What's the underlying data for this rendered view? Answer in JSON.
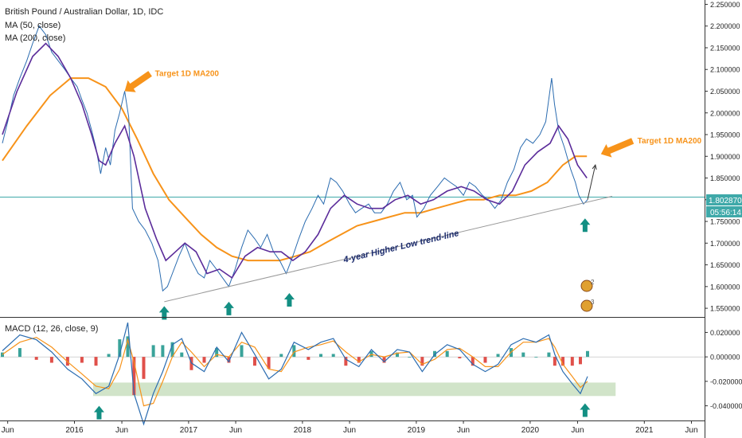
{
  "chart_data": {
    "type": "line",
    "title": "British Pound / Australian Dollar, 1D, IDC",
    "indicators": [
      "MA (50, close)",
      "MA (200, close)"
    ],
    "x_ticks": [
      "Jun",
      "2016",
      "Jun",
      "2017",
      "Jun",
      "2018",
      "Jun",
      "2019",
      "Jun",
      "2020",
      "Jun",
      "2021",
      "Jun"
    ],
    "price_axis": {
      "ylim": [
        1.53,
        2.26
      ],
      "ticks": [
        "2.250000",
        "2.200000",
        "2.150000",
        "2.100000",
        "2.050000",
        "2.000000",
        "1.950000",
        "1.900000",
        "1.850000",
        "1.800000",
        "1.750000",
        "1.700000",
        "1.650000",
        "1.600000",
        "1.550000"
      ]
    },
    "current_price": "1.802870",
    "countdown": "05:56:14",
    "series": [
      {
        "name": "GBPAUD",
        "color": "#2b6cb0",
        "x": [
          "2015-05-15",
          "2015-06-01",
          "2015-06-20",
          "2015-07-10",
          "2015-08-01",
          "2015-08-20",
          "2015-09-10",
          "2015-10-01",
          "2015-10-20",
          "2015-11-10",
          "2015-12-01",
          "2015-12-20",
          "2016-01-10",
          "2016-01-25",
          "2016-02-10",
          "2016-02-25",
          "2016-03-10",
          "2016-03-25",
          "2016-04-10",
          "2016-04-25",
          "2016-05-10",
          "2016-05-25",
          "2016-06-10",
          "2016-06-23",
          "2016-07-05",
          "2016-07-25",
          "2016-08-15",
          "2016-09-05",
          "2016-09-25",
          "2016-10-10",
          "2016-10-25",
          "2016-11-10",
          "2016-12-01",
          "2016-12-20",
          "2017-01-10",
          "2017-02-01",
          "2017-02-20",
          "2017-03-10",
          "2017-03-31",
          "2017-04-20",
          "2017-05-10",
          "2017-05-30",
          "2017-06-20",
          "2017-07-10",
          "2017-08-01",
          "2017-08-20",
          "2017-09-10",
          "2017-09-30",
          "2017-10-20",
          "2017-11-10",
          "2017-12-01",
          "2017-12-20",
          "2018-01-10",
          "2018-02-01",
          "2018-02-20",
          "2018-03-10",
          "2018-04-01",
          "2018-04-20",
          "2018-05-10",
          "2018-06-01",
          "2018-06-20",
          "2018-07-10",
          "2018-08-01",
          "2018-08-20",
          "2018-09-10",
          "2018-09-30",
          "2018-10-20",
          "2018-11-10",
          "2018-12-01",
          "2018-12-20",
          "2019-01-03",
          "2019-01-25",
          "2019-02-15",
          "2019-03-10",
          "2019-04-01",
          "2019-04-20",
          "2019-05-10",
          "2019-06-01",
          "2019-06-20",
          "2019-07-10",
          "2019-08-01",
          "2019-08-20",
          "2019-09-10",
          "2019-09-30",
          "2019-10-20",
          "2019-11-10",
          "2019-12-01",
          "2019-12-20",
          "2020-01-10",
          "2020-02-01",
          "2020-02-20",
          "2020-03-10",
          "2020-03-19",
          "2020-04-01",
          "2020-04-20",
          "2020-05-10",
          "2020-05-25",
          "2020-06-05",
          "2020-06-20",
          "2020-07-03"
        ],
        "values": [
          1.93,
          1.98,
          2.04,
          2.08,
          2.12,
          2.16,
          2.2,
          2.18,
          2.14,
          2.12,
          2.1,
          2.08,
          2.06,
          2.03,
          2.0,
          1.96,
          1.92,
          1.86,
          1.92,
          1.88,
          1.96,
          2.0,
          2.05,
          1.99,
          1.78,
          1.75,
          1.73,
          1.7,
          1.66,
          1.59,
          1.6,
          1.63,
          1.67,
          1.7,
          1.66,
          1.63,
          1.62,
          1.66,
          1.64,
          1.62,
          1.6,
          1.64,
          1.69,
          1.73,
          1.71,
          1.69,
          1.72,
          1.68,
          1.66,
          1.63,
          1.67,
          1.71,
          1.75,
          1.78,
          1.81,
          1.79,
          1.85,
          1.84,
          1.82,
          1.79,
          1.77,
          1.78,
          1.79,
          1.77,
          1.77,
          1.79,
          1.82,
          1.84,
          1.8,
          1.81,
          1.76,
          1.78,
          1.81,
          1.83,
          1.85,
          1.84,
          1.83,
          1.81,
          1.84,
          1.83,
          1.81,
          1.8,
          1.78,
          1.8,
          1.84,
          1.87,
          1.92,
          1.94,
          1.93,
          1.95,
          1.98,
          2.08,
          2.02,
          1.96,
          1.92,
          1.87,
          1.84,
          1.81,
          1.79,
          1.8
        ]
      },
      {
        "name": "MA (50, close)",
        "color": "#5b2c9a",
        "x": [
          "2015-05-15",
          "2015-07-01",
          "2015-08-20",
          "2015-10-01",
          "2015-11-10",
          "2015-12-20",
          "2016-01-25",
          "2016-02-25",
          "2016-03-20",
          "2016-04-10",
          "2016-05-10",
          "2016-06-10",
          "2016-07-10",
          "2016-08-15",
          "2016-09-20",
          "2016-10-20",
          "2016-11-20",
          "2016-12-20",
          "2017-01-25",
          "2017-03-01",
          "2017-04-10",
          "2017-05-20",
          "2017-07-01",
          "2017-08-10",
          "2017-09-20",
          "2017-10-25",
          "2017-12-01",
          "2018-01-10",
          "2018-02-20",
          "2018-04-01",
          "2018-05-15",
          "2018-06-25",
          "2018-08-05",
          "2018-09-15",
          "2018-10-25",
          "2018-12-05",
          "2019-01-15",
          "2019-02-25",
          "2019-04-10",
          "2019-05-25",
          "2019-07-05",
          "2019-08-15",
          "2019-09-25",
          "2019-11-05",
          "2019-12-15",
          "2020-01-25",
          "2020-03-05",
          "2020-04-01",
          "2020-05-01",
          "2020-06-01",
          "2020-07-01"
        ],
        "values": [
          1.95,
          2.05,
          2.13,
          2.16,
          2.13,
          2.08,
          2.02,
          1.95,
          1.89,
          1.88,
          1.93,
          1.97,
          1.9,
          1.78,
          1.71,
          1.66,
          1.68,
          1.7,
          1.68,
          1.63,
          1.64,
          1.62,
          1.67,
          1.69,
          1.68,
          1.68,
          1.66,
          1.68,
          1.72,
          1.78,
          1.81,
          1.79,
          1.78,
          1.78,
          1.8,
          1.81,
          1.79,
          1.8,
          1.82,
          1.83,
          1.82,
          1.8,
          1.79,
          1.82,
          1.88,
          1.91,
          1.93,
          1.97,
          1.94,
          1.88,
          1.85
        ]
      },
      {
        "name": "MA (200, close)",
        "color": "#f7931a",
        "x": [
          "2015-05-15",
          "2015-08-01",
          "2015-10-15",
          "2015-12-20",
          "2016-02-15",
          "2016-04-10",
          "2016-06-01",
          "2016-07-20",
          "2016-09-10",
          "2016-10-30",
          "2016-12-20",
          "2017-02-10",
          "2017-04-01",
          "2017-05-20",
          "2017-07-10",
          "2017-08-30",
          "2017-10-20",
          "2017-12-10",
          "2018-01-25",
          "2018-03-15",
          "2018-05-05",
          "2018-06-25",
          "2018-08-15",
          "2018-10-05",
          "2018-11-25",
          "2019-01-15",
          "2019-03-05",
          "2019-04-25",
          "2019-06-15",
          "2019-08-05",
          "2019-09-25",
          "2019-11-15",
          "2020-01-05",
          "2020-02-25",
          "2020-04-15",
          "2020-05-25",
          "2020-07-01"
        ],
        "values": [
          1.89,
          1.97,
          2.04,
          2.08,
          2.08,
          2.06,
          2.01,
          1.94,
          1.86,
          1.8,
          1.76,
          1.72,
          1.69,
          1.67,
          1.66,
          1.66,
          1.66,
          1.67,
          1.68,
          1.7,
          1.72,
          1.74,
          1.75,
          1.76,
          1.77,
          1.77,
          1.78,
          1.79,
          1.8,
          1.8,
          1.81,
          1.81,
          1.82,
          1.84,
          1.88,
          1.9,
          1.9
        ]
      }
    ],
    "trendline": {
      "label": "4-year Higher Low trend-line",
      "points": [
        {
          "x": "2016-10-15",
          "y": 1.565
        },
        {
          "x": "2020-09-20",
          "y": 1.808
        }
      ],
      "color": "#9a9a9a"
    },
    "projection": {
      "points": [
        {
          "x": "2020-07-03",
          "y": 1.8
        },
        {
          "x": "2020-07-28",
          "y": 1.88
        }
      ],
      "color": "#333333"
    },
    "target_level": {
      "y": 1.806,
      "color": "#3fa9a9"
    },
    "annotations": [
      {
        "text": "Target 1D MA200",
        "x": "2016-09-15",
        "y": 2.085,
        "arrow_to": {
          "x": "2016-06-10",
          "y": 2.05
        },
        "color": "#f7931a"
      },
      {
        "text": "Target 1D MA200",
        "x": "2020-12-10",
        "y": 1.93,
        "arrow_to": {
          "x": "2020-08-15",
          "y": 1.905
        },
        "color": "#f7931a"
      }
    ],
    "up_arrows_price": [
      {
        "x": "2016-10-15",
        "y": 1.555
      },
      {
        "x": "2017-05-10",
        "y": 1.565
      },
      {
        "x": "2017-11-20",
        "y": 1.585
      },
      {
        "x": "2020-06-25",
        "y": 1.757
      }
    ],
    "macd": {
      "title": "MACD (12, 26, close, 9)",
      "ylim": [
        -0.052,
        0.032
      ],
      "ticks": [
        "0.020000",
        "0.000000",
        "-0.020000",
        "-0.040000"
      ],
      "zone": {
        "x": [
          "2016-03-01",
          "2020-10-01"
        ],
        "y": [
          -0.032,
          -0.021
        ],
        "color": "#c9dfc0"
      },
      "macd_color": "#2b6cb0",
      "signal_color": "#f7931a",
      "hist_up_color": "#3aa39a",
      "hist_down_color": "#e0504a",
      "x": [
        "2015-05-15",
        "2015-07-10",
        "2015-09-01",
        "2015-10-20",
        "2015-12-10",
        "2016-01-25",
        "2016-03-10",
        "2016-04-20",
        "2016-05-25",
        "2016-06-20",
        "2016-07-10",
        "2016-08-10",
        "2016-09-10",
        "2016-10-10",
        "2016-11-10",
        "2016-12-10",
        "2017-01-10",
        "2017-02-20",
        "2017-04-01",
        "2017-05-10",
        "2017-06-20",
        "2017-08-01",
        "2017-09-15",
        "2017-10-25",
        "2017-12-05",
        "2018-01-20",
        "2018-03-01",
        "2018-04-10",
        "2018-05-20",
        "2018-07-01",
        "2018-08-10",
        "2018-09-20",
        "2018-11-01",
        "2018-12-10",
        "2019-01-20",
        "2019-03-01",
        "2019-04-10",
        "2019-05-20",
        "2019-07-01",
        "2019-08-10",
        "2019-09-20",
        "2019-11-01",
        "2019-12-10",
        "2020-01-20",
        "2020-03-01",
        "2020-03-20",
        "2020-04-15",
        "2020-05-15",
        "2020-06-10",
        "2020-07-03"
      ],
      "macd_values": [
        0.005,
        0.018,
        0.014,
        0.004,
        -0.01,
        -0.018,
        -0.03,
        -0.024,
        0.002,
        0.028,
        -0.03,
        -0.055,
        -0.03,
        -0.012,
        0.01,
        0.015,
        -0.005,
        -0.012,
        0.008,
        -0.004,
        0.02,
        0.002,
        -0.018,
        -0.01,
        0.012,
        0.006,
        0.012,
        0.015,
        -0.002,
        -0.008,
        0.006,
        -0.004,
        0.006,
        0.004,
        -0.012,
        0.002,
        0.01,
        0.006,
        -0.006,
        -0.012,
        -0.006,
        0.01,
        0.015,
        0.012,
        0.018,
        0.002,
        -0.012,
        -0.022,
        -0.03,
        -0.016
      ],
      "signal_values": [
        0.002,
        0.012,
        0.016,
        0.008,
        -0.004,
        -0.014,
        -0.024,
        -0.026,
        -0.01,
        0.014,
        -0.004,
        -0.04,
        -0.038,
        -0.02,
        0.0,
        0.012,
        0.004,
        -0.008,
        0.002,
        0.0,
        0.012,
        0.008,
        -0.01,
        -0.012,
        0.004,
        0.008,
        0.01,
        0.013,
        0.004,
        -0.004,
        0.002,
        0.0,
        0.003,
        0.004,
        -0.006,
        -0.002,
        0.006,
        0.007,
        0.0,
        -0.008,
        -0.008,
        0.004,
        0.012,
        0.012,
        0.015,
        0.008,
        -0.006,
        -0.016,
        -0.025,
        -0.02
      ]
    },
    "up_arrows_macd": [
      {
        "x": "2016-03-20",
        "y": -0.04
      },
      {
        "x": "2020-06-25",
        "y": -0.038
      }
    ]
  }
}
